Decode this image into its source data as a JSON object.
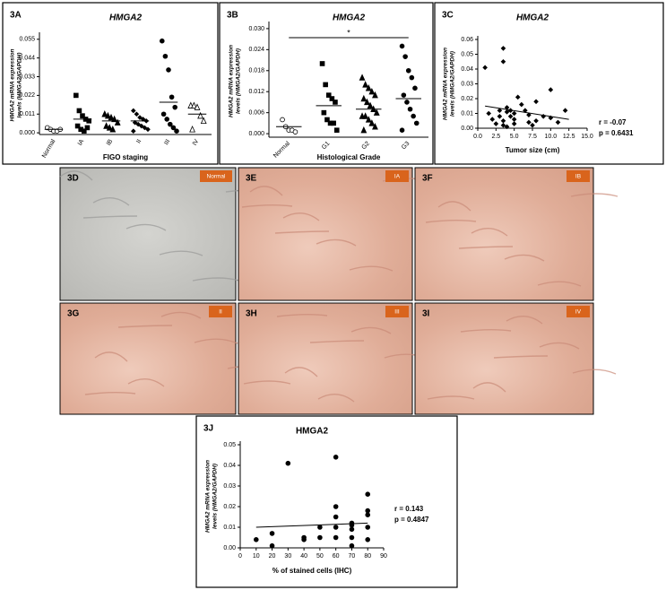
{
  "chart_data": [
    {
      "type": "dot",
      "panel": "3A",
      "title": "HMGA2",
      "y_label": [
        "HMGA2 mRNA expression",
        "levels (HMGA2/GAPDH)"
      ],
      "x_label": "FIGO staging",
      "categories": [
        "Normal",
        "IA",
        "IB",
        "II",
        "III",
        "IV"
      ],
      "markers": [
        "open-circle",
        "square",
        "triangle",
        "diamond",
        "circle",
        "open-triangle"
      ],
      "groups": [
        [
          0.003,
          0.002,
          0.001,
          0.001,
          0.002
        ],
        [
          0.022,
          0.013,
          0.01,
          0.008,
          0.007,
          0.004,
          0.002,
          0.001,
          0.003
        ],
        [
          0.011,
          0.01,
          0.009,
          0.008,
          0.006,
          0.004,
          0.003,
          0.002
        ],
        [
          0.013,
          0.011,
          0.009,
          0.008,
          0.007,
          0.006,
          0.005,
          0.004,
          0.003,
          0.002,
          0.001
        ],
        [
          0.054,
          0.045,
          0.037,
          0.021,
          0.015,
          0.011,
          0.008,
          0.005,
          0.003,
          0.001
        ],
        [
          0.016,
          0.016,
          0.015,
          0.01,
          0.007,
          0.002
        ]
      ],
      "means": [
        0.002,
        0.008,
        0.007,
        0.007,
        0.018,
        0.011
      ],
      "ylim": [
        -0.001,
        0.057
      ],
      "yticks": [
        {
          "value": 0,
          "label": "0.000"
        },
        0.011,
        0.022,
        0.033,
        0.044,
        0.055
      ]
    },
    {
      "type": "dot",
      "panel": "3B",
      "title": "HMGA2",
      "y_label": [
        "HMGA2 mRNA expression",
        "levels (HMGA2/GAPDH)"
      ],
      "x_label": "Histological Grade",
      "annotation": "*",
      "categories": [
        "Normal",
        "G1",
        "G2",
        "G3"
      ],
      "markers": [
        "open-circle",
        "square",
        "triangle",
        "circle"
      ],
      "groups": [
        [
          0.004,
          0.002,
          0.001,
          0.001,
          0.0005
        ],
        [
          0.02,
          0.014,
          0.011,
          0.01,
          0.009,
          0.006,
          0.004,
          0.003,
          0.003,
          0.001
        ],
        [
          0.016,
          0.014,
          0.013,
          0.012,
          0.011,
          0.01,
          0.009,
          0.008,
          0.007,
          0.006,
          0.005,
          0.005,
          0.004,
          0.003,
          0.002,
          0.001
        ],
        [
          0.025,
          0.022,
          0.018,
          0.016,
          0.013,
          0.011,
          0.009,
          0.007,
          0.005,
          0.003,
          0.001
        ]
      ],
      "means": [
        0.002,
        0.008,
        0.007,
        0.01
      ],
      "ylim": [
        -0.001,
        0.031
      ],
      "yticks": [
        {
          "value": 0,
          "label": "0.000"
        },
        0.006,
        0.012,
        0.018,
        0.024,
        {
          "value": 0.03,
          "label": "0.030"
        }
      ]
    },
    {
      "type": "scatter",
      "panel": "3C",
      "title": "HMGA2",
      "y_label": [
        "HMGA2 mRNA expression",
        "levels (HMGA2/GAPDH)"
      ],
      "x_label": "Tumor size (cm)",
      "annotations": [
        "r = -0.07",
        "p = 0.6431"
      ],
      "marker": "diamond",
      "x": [
        1,
        3.5,
        3.5,
        1.5,
        2,
        2.5,
        3,
        3,
        3.5,
        3.5,
        4,
        4,
        4,
        4.5,
        4.5,
        5,
        5,
        5,
        5.5,
        6,
        6.5,
        7,
        7,
        7.5,
        8,
        8,
        9,
        10,
        10,
        11,
        12
      ],
      "values": [
        0.041,
        0.054,
        0.045,
        0.01,
        0.006,
        0.003,
        0.012,
        0.008,
        0.005,
        0.002,
        0.014,
        0.011,
        0.001,
        0.012,
        0.008,
        0.003,
        0.01,
        0.006,
        0.021,
        0.016,
        0.012,
        0.009,
        0.004,
        0.002,
        0.018,
        0.005,
        0.008,
        0.026,
        0.007,
        0.004,
        0.012
      ],
      "fit": {
        "x": [
          1,
          12.5
        ],
        "y": [
          0.015,
          0.006
        ]
      },
      "xlim": [
        0,
        15
      ],
      "ylim": [
        0,
        0.06
      ],
      "xticks": [
        {
          "value": 0,
          "label": "0.0"
        },
        2.5,
        {
          "value": 5,
          "label": "5.0"
        },
        7.5,
        {
          "value": 10,
          "label": "10.0"
        },
        12.5,
        {
          "value": 15,
          "label": "15.0"
        }
      ],
      "yticks": [
        {
          "value": 0,
          "label": "0.00"
        },
        0.01,
        0.02,
        0.03,
        0.04,
        0.05,
        0.06
      ]
    },
    {
      "type": "scatter",
      "panel": "3J",
      "title": "HMGA2",
      "y_label": [
        "HMGA2 mRNA expression",
        "levels (HMGA2/GAPDH)"
      ],
      "x_label": "% of stained cells (IHC)",
      "annotations": [
        "r = 0.143",
        "p = 0.4847"
      ],
      "marker": "circle",
      "x": [
        10,
        20,
        20,
        30,
        40,
        40,
        50,
        50,
        60,
        60,
        60,
        60,
        60,
        70,
        70,
        70,
        70,
        70,
        80,
        80,
        80,
        80,
        80
      ],
      "values": [
        0.004,
        0.007,
        0.001,
        0.041,
        0.005,
        0.004,
        0.01,
        0.005,
        0.044,
        0.02,
        0.015,
        0.01,
        0.005,
        0.012,
        0.011,
        0.009,
        0.005,
        0.001,
        0.026,
        0.018,
        0.016,
        0.01,
        0.004
      ],
      "fit": {
        "x": [
          10,
          80
        ],
        "y": [
          0.01,
          0.012
        ]
      },
      "xlim": [
        0,
        90
      ],
      "ylim": [
        0,
        0.05
      ],
      "xticks": [
        0,
        10,
        20,
        30,
        40,
        50,
        60,
        70,
        80,
        90
      ],
      "yticks": [
        {
          "value": 0,
          "label": "0.00"
        },
        0.01,
        0.02,
        0.03,
        0.04,
        0.05
      ]
    }
  ],
  "image_panels": [
    {
      "label": "3D",
      "stage": "Normal"
    },
    {
      "label": "3E",
      "stage": "IA"
    },
    {
      "label": "3F",
      "stage": "IB"
    },
    {
      "label": "3G",
      "stage": "II"
    },
    {
      "label": "3H",
      "stage": "III"
    },
    {
      "label": "3I",
      "stage": "IV"
    }
  ]
}
